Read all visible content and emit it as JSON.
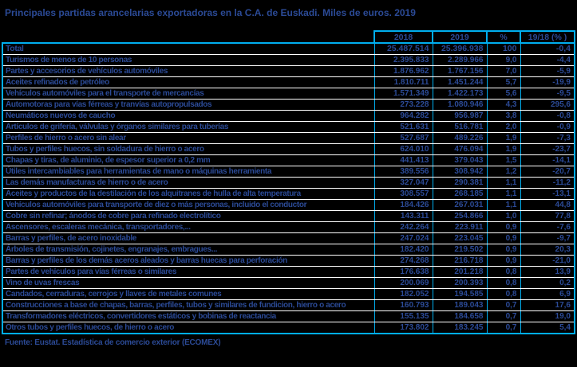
{
  "title": "Principales partidas arancelarias exportadoras en la C.A. de Euskadi. Miles de euros. 2019",
  "colors": {
    "background": "#000000",
    "text": "#2B4A96",
    "grid_border": "#00AEEF",
    "row_divider": "#FFFFFF"
  },
  "table": {
    "columns": [
      "2018",
      "2019",
      "%",
      "19/18 (% )"
    ],
    "rows": [
      {
        "label": "Total",
        "v2018": "25.487.514",
        "v2019": "25.396.938",
        "pct": "100",
        "var": "-0,4",
        "is_total": true
      },
      {
        "label": "Turismos de menos de  10 personas",
        "v2018": "2.395.833",
        "v2019": "2.289.966",
        "pct": "9,0",
        "var": "-4,4",
        "is_total": false
      },
      {
        "label": "Partes y accesorios de vehículos automóviles",
        "v2018": "1.876.962",
        "v2019": "1.767.156",
        "pct": "7,0",
        "var": "-5,9",
        "is_total": false
      },
      {
        "label": "Aceites refinados de petróleo",
        "v2018": "1.810.711",
        "v2019": "1.451.244",
        "pct": "5,7",
        "var": "-19,9",
        "is_total": false
      },
      {
        "label": "Vehículos automóviles para el transporte de mercancías",
        "v2018": "1.571.349",
        "v2019": "1.422.173",
        "pct": "5,6",
        "var": "-9,5",
        "is_total": false
      },
      {
        "label": "Automotoras para vías férreas y tranvías autopropulsados",
        "v2018": "273.228",
        "v2019": "1.080.946",
        "pct": "4,3",
        "var": "295,6",
        "is_total": false
      },
      {
        "label": "Neumáticos nuevos de caucho",
        "v2018": "964.282",
        "v2019": "956.987",
        "pct": "3,8",
        "var": "-0,8",
        "is_total": false
      },
      {
        "label": "Artículos de grifería, válvulas y órganos similares para tuberías",
        "v2018": "521.631",
        "v2019": "516.781",
        "pct": "2,0",
        "var": "-0,9",
        "is_total": false
      },
      {
        "label": "Perfiles de hierro o acero sin alear",
        "v2018": "527.687",
        "v2019": "489.226",
        "pct": "1,9",
        "var": "-7,3",
        "is_total": false
      },
      {
        "label": "Tubos y perfiles huecos, sin soldadura de hierro o acero",
        "v2018": "624.010",
        "v2019": "476.094",
        "pct": "1,9",
        "var": "-23,7",
        "is_total": false
      },
      {
        "label": "Chapas y tiras, de aluminio, de espesor superior a 0,2 mm",
        "v2018": "441.413",
        "v2019": "379.043",
        "pct": "1,5",
        "var": "-14,1",
        "is_total": false
      },
      {
        "label": "Útiles intercambiables para herramientas de mano o máquinas herramienta",
        "v2018": "389.556",
        "v2019": "308.942",
        "pct": "1,2",
        "var": "-20,7",
        "is_total": false
      },
      {
        "label": "Las demás manufacturas de hierro o de acero",
        "v2018": "327.047",
        "v2019": "290.381",
        "pct": "1,1",
        "var": "-11,2",
        "is_total": false
      },
      {
        "label": "Aceites y productos de la destilación de los alquitranes de hulla de alta temperatura",
        "v2018": "308.557",
        "v2019": "268.185",
        "pct": "1,1",
        "var": "-13,1",
        "is_total": false
      },
      {
        "label": "Vehículos automóviles para transporte de diez o más personas, incluido el conductor",
        "v2018": "184.426",
        "v2019": "267.031",
        "pct": "1,1",
        "var": "44,8",
        "is_total": false
      },
      {
        "label": "Cobre sin refinar; ánodos de cobre para refinado electrolítico",
        "v2018": "143.311",
        "v2019": "254.866",
        "pct": "1,0",
        "var": "77,8",
        "is_total": false
      },
      {
        "label": "Ascensores, escaleras mecánica, transportadores,...",
        "v2018": "242.264",
        "v2019": "223.911",
        "pct": "0,9",
        "var": "-7,6",
        "is_total": false
      },
      {
        "label": "Barras y perfiles, de acero inoxidable",
        "v2018": "247.024",
        "v2019": "223.045",
        "pct": "0,9",
        "var": "-9,7",
        "is_total": false
      },
      {
        "label": "Árboles de transmisión, cojinetes, engranajes, embragues...",
        "v2018": "182.420",
        "v2019": "219.502",
        "pct": "0,9",
        "var": "20,3",
        "is_total": false
      },
      {
        "label": "Barras y perfiles de los demás aceros aleados y barras huecas para perforación",
        "v2018": "274.268",
        "v2019": "216.718",
        "pct": "0,9",
        "var": "-21,0",
        "is_total": false
      },
      {
        "label": "Partes de vehículos para vías férreas o similares",
        "v2018": "176.638",
        "v2019": "201.218",
        "pct": "0,8",
        "var": "13,9",
        "is_total": false
      },
      {
        "label": "Vino de uvas frescas",
        "v2018": "200.069",
        "v2019": "200.393",
        "pct": "0,8",
        "var": "0,2",
        "is_total": false
      },
      {
        "label": "Candados, cerraduras, cerrojos y llaves de metales comunes",
        "v2018": "182.052",
        "v2019": "194.585",
        "pct": "0,8",
        "var": "6,9",
        "is_total": false
      },
      {
        "label": "Construcciones a base de chapas, barras, perfiles, tubos y similares de fundicion, hierro o acero",
        "v2018": "160.793",
        "v2019": "189.043",
        "pct": "0,7",
        "var": "17,6",
        "is_total": false
      },
      {
        "label": "Transformadores eléctricos, convertidores estáticos y bobinas de reactancia",
        "v2018": "155.135",
        "v2019": "184.658",
        "pct": "0,7",
        "var": "19,0",
        "is_total": false
      },
      {
        "label": "Otros tubos y perfiles huecos, de hierro o acero",
        "v2018": "173.802",
        "v2019": "183.245",
        "pct": "0,7",
        "var": "5,4",
        "is_total": false
      }
    ]
  },
  "footer": {
    "source": "Fuente: Eustat. Estadística de comercio exterior (ECOMEX)"
  }
}
